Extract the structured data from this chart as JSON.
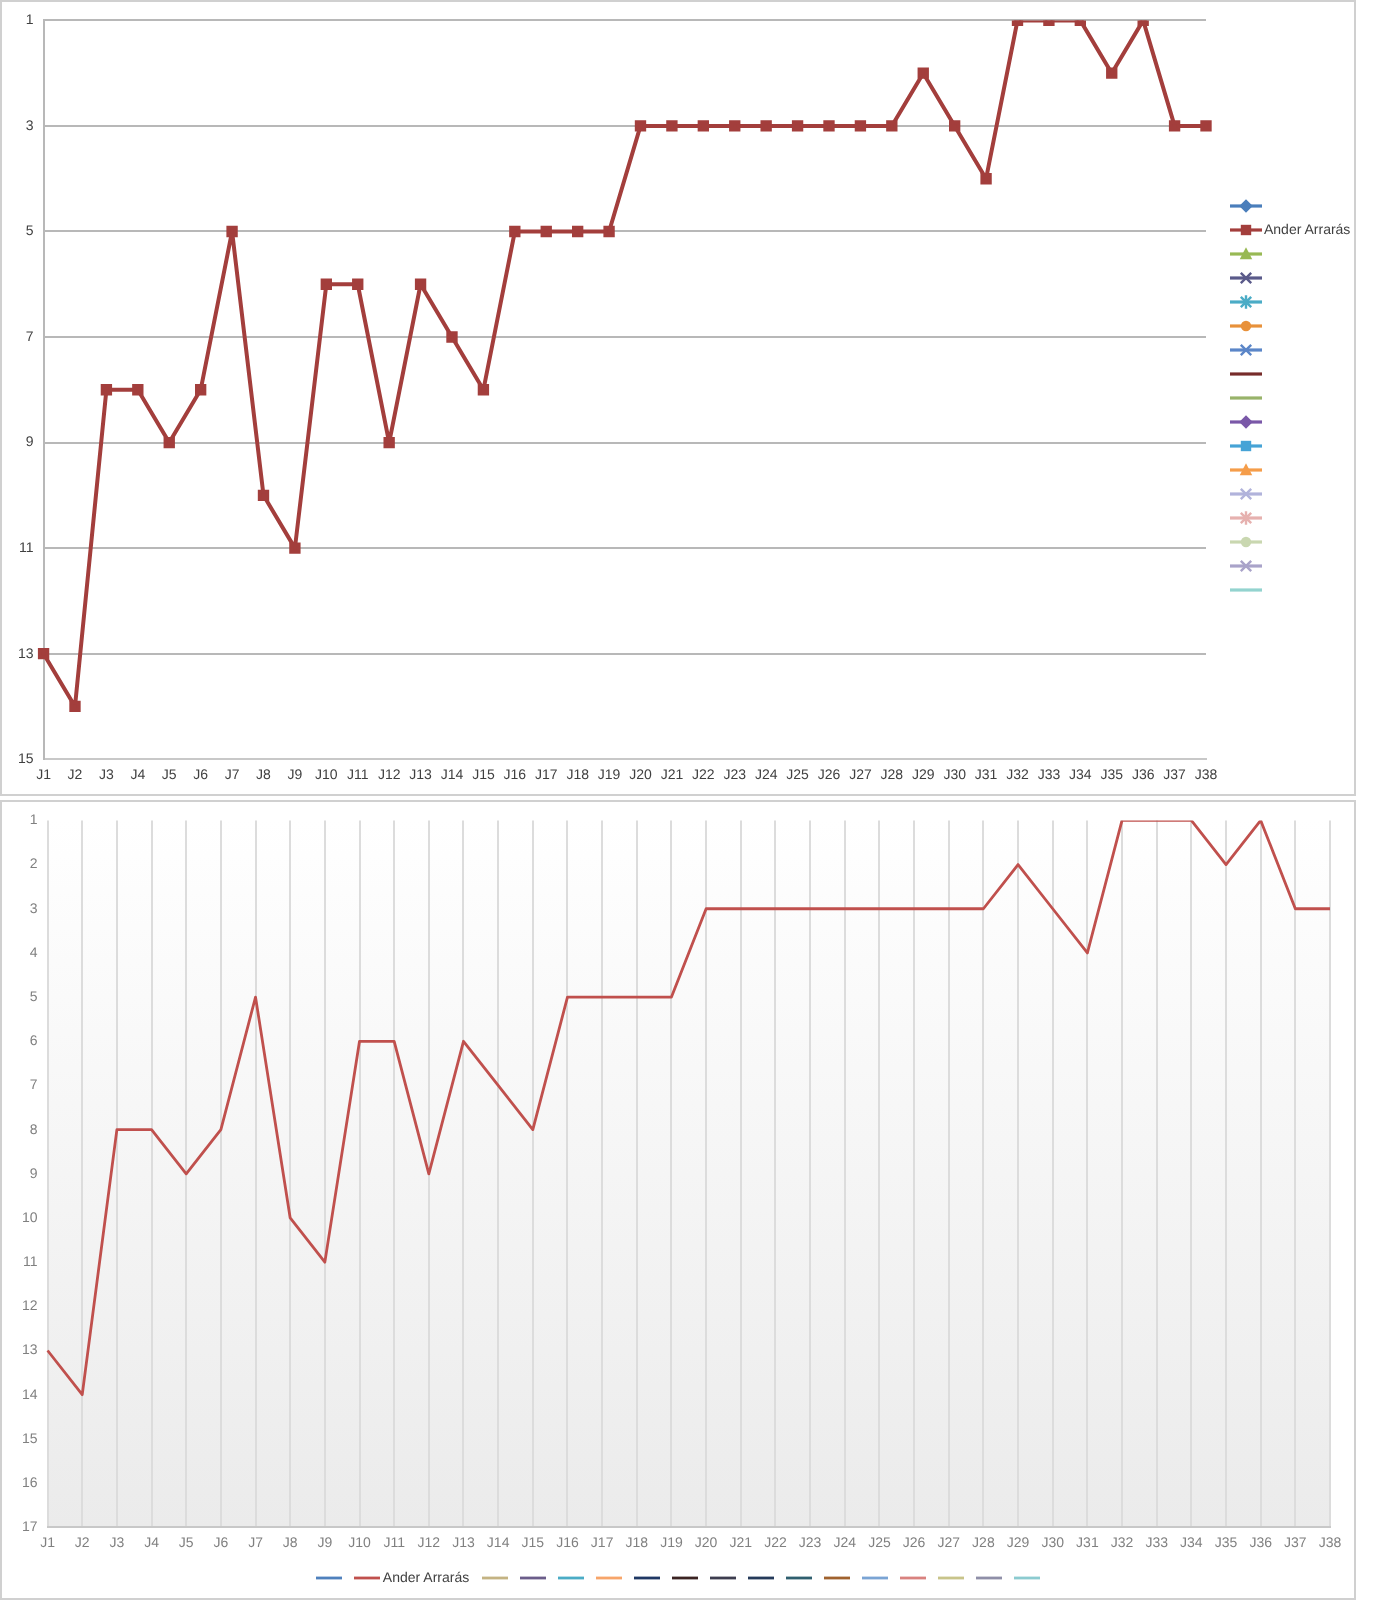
{
  "chart_data": [
    {
      "type": "line",
      "categories": [
        "J1",
        "J2",
        "J3",
        "J4",
        "J5",
        "J6",
        "J7",
        "J8",
        "J9",
        "J10",
        "J11",
        "J12",
        "J13",
        "J14",
        "J15",
        "J16",
        "J17",
        "J18",
        "J19",
        "J20",
        "J21",
        "J22",
        "J23",
        "J24",
        "J25",
        "J26",
        "J27",
        "J28",
        "J29",
        "J30",
        "J31",
        "J32",
        "J33",
        "J34",
        "J35",
        "J36",
        "J37",
        "J38"
      ],
      "series": [
        {
          "color": "#4a7ebb",
          "marker": "diamond",
          "values": [
            null,
            null,
            null,
            null,
            null,
            null,
            null,
            null,
            null,
            null,
            null,
            null,
            null,
            null,
            null,
            null,
            null,
            null,
            null,
            null,
            null,
            null,
            null,
            null,
            null,
            null,
            null,
            null,
            null,
            null,
            null,
            null,
            null,
            null,
            null,
            null,
            null,
            null
          ]
        },
        {
          "name": "Ander Arrarás",
          "color": "#a33e3c",
          "marker": "square",
          "values": [
            13,
            14,
            8,
            8,
            9,
            8,
            5,
            10,
            11,
            6,
            6,
            9,
            6,
            7,
            8,
            5,
            5,
            5,
            5,
            3,
            3,
            3,
            3,
            3,
            3,
            3,
            3,
            3,
            2,
            3,
            4,
            1,
            1,
            1,
            2,
            1,
            3,
            3
          ]
        },
        {
          "color": "#98b954",
          "marker": "triangle",
          "values": [
            null,
            null,
            null,
            null,
            null,
            null,
            null,
            null,
            null,
            null,
            null,
            null,
            null,
            null,
            null,
            null,
            null,
            null,
            null,
            null,
            null,
            null,
            null,
            null,
            null,
            null,
            null,
            null,
            null,
            null,
            null,
            null,
            null,
            null,
            null,
            null,
            null,
            null
          ]
        },
        {
          "color": "#5a5a8a",
          "marker": "cross",
          "values": [
            null,
            null,
            null,
            null,
            null,
            null,
            null,
            null,
            null,
            null,
            null,
            null,
            null,
            null,
            null,
            null,
            null,
            null,
            null,
            null,
            null,
            null,
            null,
            null,
            null,
            null,
            null,
            null,
            null,
            null,
            null,
            null,
            null,
            null,
            null,
            null,
            null,
            null
          ]
        },
        {
          "color": "#4bacc6",
          "marker": "star",
          "values": [
            null,
            null,
            null,
            null,
            null,
            null,
            null,
            null,
            null,
            null,
            null,
            null,
            null,
            null,
            null,
            null,
            null,
            null,
            null,
            null,
            null,
            null,
            null,
            null,
            null,
            null,
            null,
            null,
            null,
            null,
            null,
            null,
            null,
            null,
            null,
            null,
            null,
            null
          ]
        },
        {
          "color": "#e8913a",
          "marker": "circle",
          "values": [
            null,
            null,
            null,
            null,
            null,
            null,
            null,
            null,
            null,
            null,
            null,
            null,
            null,
            null,
            null,
            null,
            null,
            null,
            null,
            null,
            null,
            null,
            null,
            null,
            null,
            null,
            null,
            null,
            null,
            null,
            null,
            null,
            null,
            null,
            null,
            null,
            null,
            null
          ]
        },
        {
          "color": "#5b86c8",
          "marker": "cross",
          "values": [
            null,
            null,
            null,
            null,
            null,
            null,
            null,
            null,
            null,
            null,
            null,
            null,
            null,
            null,
            null,
            null,
            null,
            null,
            null,
            null,
            null,
            null,
            null,
            null,
            null,
            null,
            null,
            null,
            null,
            null,
            null,
            null,
            null,
            null,
            null,
            null,
            null,
            null
          ]
        },
        {
          "color": "#772c2a",
          "marker": "none",
          "values": [
            null,
            null,
            null,
            null,
            null,
            null,
            null,
            null,
            null,
            null,
            null,
            null,
            null,
            null,
            null,
            null,
            null,
            null,
            null,
            null,
            null,
            null,
            null,
            null,
            null,
            null,
            null,
            null,
            null,
            null,
            null,
            null,
            null,
            null,
            null,
            null,
            null,
            null
          ]
        },
        {
          "color": "#98b36a",
          "marker": "none",
          "values": [
            null,
            null,
            null,
            null,
            null,
            null,
            null,
            null,
            null,
            null,
            null,
            null,
            null,
            null,
            null,
            null,
            null,
            null,
            null,
            null,
            null,
            null,
            null,
            null,
            null,
            null,
            null,
            null,
            null,
            null,
            null,
            null,
            null,
            null,
            null,
            null,
            null,
            null
          ]
        },
        {
          "color": "#7a58a8",
          "marker": "diamond",
          "values": [
            null,
            null,
            null,
            null,
            null,
            null,
            null,
            null,
            null,
            null,
            null,
            null,
            null,
            null,
            null,
            null,
            null,
            null,
            null,
            null,
            null,
            null,
            null,
            null,
            null,
            null,
            null,
            null,
            null,
            null,
            null,
            null,
            null,
            null,
            null,
            null,
            null,
            null
          ]
        },
        {
          "color": "#46a3d6",
          "marker": "square",
          "values": [
            null,
            null,
            null,
            null,
            null,
            null,
            null,
            null,
            null,
            null,
            null,
            null,
            null,
            null,
            null,
            null,
            null,
            null,
            null,
            null,
            null,
            null,
            null,
            null,
            null,
            null,
            null,
            null,
            null,
            null,
            null,
            null,
            null,
            null,
            null,
            null,
            null,
            null
          ]
        },
        {
          "color": "#f59d4a",
          "marker": "triangle",
          "values": [
            null,
            null,
            null,
            null,
            null,
            null,
            null,
            null,
            null,
            null,
            null,
            null,
            null,
            null,
            null,
            null,
            null,
            null,
            null,
            null,
            null,
            null,
            null,
            null,
            null,
            null,
            null,
            null,
            null,
            null,
            null,
            null,
            null,
            null,
            null,
            null,
            null,
            null
          ]
        },
        {
          "color": "#b1b3db",
          "marker": "cross",
          "values": [
            null,
            null,
            null,
            null,
            null,
            null,
            null,
            null,
            null,
            null,
            null,
            null,
            null,
            null,
            null,
            null,
            null,
            null,
            null,
            null,
            null,
            null,
            null,
            null,
            null,
            null,
            null,
            null,
            null,
            null,
            null,
            null,
            null,
            null,
            null,
            null,
            null,
            null
          ]
        },
        {
          "color": "#e6b1af",
          "marker": "star",
          "values": [
            null,
            null,
            null,
            null,
            null,
            null,
            null,
            null,
            null,
            null,
            null,
            null,
            null,
            null,
            null,
            null,
            null,
            null,
            null,
            null,
            null,
            null,
            null,
            null,
            null,
            null,
            null,
            null,
            null,
            null,
            null,
            null,
            null,
            null,
            null,
            null,
            null,
            null
          ]
        },
        {
          "color": "#c9d7b0",
          "marker": "circle",
          "values": [
            null,
            null,
            null,
            null,
            null,
            null,
            null,
            null,
            null,
            null,
            null,
            null,
            null,
            null,
            null,
            null,
            null,
            null,
            null,
            null,
            null,
            null,
            null,
            null,
            null,
            null,
            null,
            null,
            null,
            null,
            null,
            null,
            null,
            null,
            null,
            null,
            null,
            null
          ]
        },
        {
          "color": "#a9a3c9",
          "marker": "cross",
          "values": [
            null,
            null,
            null,
            null,
            null,
            null,
            null,
            null,
            null,
            null,
            null,
            null,
            null,
            null,
            null,
            null,
            null,
            null,
            null,
            null,
            null,
            null,
            null,
            null,
            null,
            null,
            null,
            null,
            null,
            null,
            null,
            null,
            null,
            null,
            null,
            null,
            null,
            null
          ]
        },
        {
          "color": "#93d3cf",
          "marker": "none",
          "values": [
            null,
            null,
            null,
            null,
            null,
            null,
            null,
            null,
            null,
            null,
            null,
            null,
            null,
            null,
            null,
            null,
            null,
            null,
            null,
            null,
            null,
            null,
            null,
            null,
            null,
            null,
            null,
            null,
            null,
            null,
            null,
            null,
            null,
            null,
            null,
            null,
            null,
            null
          ]
        }
      ],
      "ylim": [
        15,
        1
      ],
      "yticks": [
        1,
        3,
        5,
        7,
        9,
        11,
        13,
        15
      ],
      "grid": "y",
      "legend": "right"
    },
    {
      "type": "line",
      "categories": [
        "J1",
        "J2",
        "J3",
        "J4",
        "J5",
        "J6",
        "J7",
        "J8",
        "J9",
        "J10",
        "J11",
        "J12",
        "J13",
        "J14",
        "J15",
        "J16",
        "J17",
        "J18",
        "J19",
        "J20",
        "J21",
        "J22",
        "J23",
        "J24",
        "J25",
        "J26",
        "J27",
        "J28",
        "J29",
        "J30",
        "J31",
        "J32",
        "J33",
        "J34",
        "J35",
        "J36",
        "J37",
        "J38"
      ],
      "series": [
        {
          "color": "#4f81bd",
          "values": [
            null,
            null,
            null,
            null,
            null,
            null,
            null,
            null,
            null,
            null,
            null,
            null,
            null,
            null,
            null,
            null,
            null,
            null,
            null,
            null,
            null,
            null,
            null,
            null,
            null,
            null,
            null,
            null,
            null,
            null,
            null,
            null,
            null,
            null,
            null,
            null,
            null,
            null
          ]
        },
        {
          "name": "Ander Arrarás",
          "color": "#c0504d",
          "values": [
            13,
            14,
            8,
            8,
            9,
            8,
            5,
            10,
            11,
            6,
            6,
            9,
            6,
            7,
            8,
            5,
            5,
            5,
            5,
            3,
            3,
            3,
            3,
            3,
            3,
            3,
            3,
            3,
            2,
            3,
            4,
            1,
            1,
            1,
            2,
            1,
            3,
            3
          ]
        },
        {
          "color": "#c4b383",
          "values": [
            null,
            null,
            null,
            null,
            null,
            null,
            null,
            null,
            null,
            null,
            null,
            null,
            null,
            null,
            null,
            null,
            null,
            null,
            null,
            null,
            null,
            null,
            null,
            null,
            null,
            null,
            null,
            null,
            null,
            null,
            null,
            null,
            null,
            null,
            null,
            null,
            null,
            null
          ]
        },
        {
          "color": "#6b5d8a",
          "values": [
            null,
            null,
            null,
            null,
            null,
            null,
            null,
            null,
            null,
            null,
            null,
            null,
            null,
            null,
            null,
            null,
            null,
            null,
            null,
            null,
            null,
            null,
            null,
            null,
            null,
            null,
            null,
            null,
            null,
            null,
            null,
            null,
            null,
            null,
            null,
            null,
            null,
            null
          ]
        },
        {
          "color": "#4bacc6",
          "values": [
            null,
            null,
            null,
            null,
            null,
            null,
            null,
            null,
            null,
            null,
            null,
            null,
            null,
            null,
            null,
            null,
            null,
            null,
            null,
            null,
            null,
            null,
            null,
            null,
            null,
            null,
            null,
            null,
            null,
            null,
            null,
            null,
            null,
            null,
            null,
            null,
            null,
            null
          ]
        },
        {
          "color": "#f7a56a",
          "values": [
            null,
            null,
            null,
            null,
            null,
            null,
            null,
            null,
            null,
            null,
            null,
            null,
            null,
            null,
            null,
            null,
            null,
            null,
            null,
            null,
            null,
            null,
            null,
            null,
            null,
            null,
            null,
            null,
            null,
            null,
            null,
            null,
            null,
            null,
            null,
            null,
            null,
            null
          ]
        },
        {
          "color": "#1f3864",
          "values": [
            null,
            null,
            null,
            null,
            null,
            null,
            null,
            null,
            null,
            null,
            null,
            null,
            null,
            null,
            null,
            null,
            null,
            null,
            null,
            null,
            null,
            null,
            null,
            null,
            null,
            null,
            null,
            null,
            null,
            null,
            null,
            null,
            null,
            null,
            null,
            null,
            null,
            null
          ]
        },
        {
          "color": "#3b2322",
          "values": [
            null,
            null,
            null,
            null,
            null,
            null,
            null,
            null,
            null,
            null,
            null,
            null,
            null,
            null,
            null,
            null,
            null,
            null,
            null,
            null,
            null,
            null,
            null,
            null,
            null,
            null,
            null,
            null,
            null,
            null,
            null,
            null,
            null,
            null,
            null,
            null,
            null,
            null
          ]
        },
        {
          "color": "#3d3d4f",
          "values": [
            null,
            null,
            null,
            null,
            null,
            null,
            null,
            null,
            null,
            null,
            null,
            null,
            null,
            null,
            null,
            null,
            null,
            null,
            null,
            null,
            null,
            null,
            null,
            null,
            null,
            null,
            null,
            null,
            null,
            null,
            null,
            null,
            null,
            null,
            null,
            null,
            null,
            null
          ]
        },
        {
          "color": "#253a5a",
          "values": [
            null,
            null,
            null,
            null,
            null,
            null,
            null,
            null,
            null,
            null,
            null,
            null,
            null,
            null,
            null,
            null,
            null,
            null,
            null,
            null,
            null,
            null,
            null,
            null,
            null,
            null,
            null,
            null,
            null,
            null,
            null,
            null,
            null,
            null,
            null,
            null,
            null,
            null
          ]
        },
        {
          "color": "#2f5f6f",
          "values": [
            null,
            null,
            null,
            null,
            null,
            null,
            null,
            null,
            null,
            null,
            null,
            null,
            null,
            null,
            null,
            null,
            null,
            null,
            null,
            null,
            null,
            null,
            null,
            null,
            null,
            null,
            null,
            null,
            null,
            null,
            null,
            null,
            null,
            null,
            null,
            null,
            null,
            null
          ]
        },
        {
          "color": "#a0622e",
          "values": [
            null,
            null,
            null,
            null,
            null,
            null,
            null,
            null,
            null,
            null,
            null,
            null,
            null,
            null,
            null,
            null,
            null,
            null,
            null,
            null,
            null,
            null,
            null,
            null,
            null,
            null,
            null,
            null,
            null,
            null,
            null,
            null,
            null,
            null,
            null,
            null,
            null,
            null
          ]
        },
        {
          "color": "#7aa4d4",
          "values": [
            null,
            null,
            null,
            null,
            null,
            null,
            null,
            null,
            null,
            null,
            null,
            null,
            null,
            null,
            null,
            null,
            null,
            null,
            null,
            null,
            null,
            null,
            null,
            null,
            null,
            null,
            null,
            null,
            null,
            null,
            null,
            null,
            null,
            null,
            null,
            null,
            null,
            null
          ]
        },
        {
          "color": "#d9827f",
          "values": [
            null,
            null,
            null,
            null,
            null,
            null,
            null,
            null,
            null,
            null,
            null,
            null,
            null,
            null,
            null,
            null,
            null,
            null,
            null,
            null,
            null,
            null,
            null,
            null,
            null,
            null,
            null,
            null,
            null,
            null,
            null,
            null,
            null,
            null,
            null,
            null,
            null,
            null
          ]
        },
        {
          "color": "#c8c48a",
          "values": [
            null,
            null,
            null,
            null,
            null,
            null,
            null,
            null,
            null,
            null,
            null,
            null,
            null,
            null,
            null,
            null,
            null,
            null,
            null,
            null,
            null,
            null,
            null,
            null,
            null,
            null,
            null,
            null,
            null,
            null,
            null,
            null,
            null,
            null,
            null,
            null,
            null,
            null
          ]
        },
        {
          "color": "#8f8fa8",
          "values": [
            null,
            null,
            null,
            null,
            null,
            null,
            null,
            null,
            null,
            null,
            null,
            null,
            null,
            null,
            null,
            null,
            null,
            null,
            null,
            null,
            null,
            null,
            null,
            null,
            null,
            null,
            null,
            null,
            null,
            null,
            null,
            null,
            null,
            null,
            null,
            null,
            null,
            null
          ]
        },
        {
          "color": "#8ccbd0",
          "values": [
            null,
            null,
            null,
            null,
            null,
            null,
            null,
            null,
            null,
            null,
            null,
            null,
            null,
            null,
            null,
            null,
            null,
            null,
            null,
            null,
            null,
            null,
            null,
            null,
            null,
            null,
            null,
            null,
            null,
            null,
            null,
            null,
            null,
            null,
            null,
            null,
            null,
            null
          ]
        }
      ],
      "ylim": [
        17,
        1
      ],
      "yticks": [
        1,
        2,
        3,
        4,
        5,
        6,
        7,
        8,
        9,
        10,
        11,
        12,
        13,
        14,
        15,
        16,
        17
      ],
      "grid": "x",
      "marker": "none",
      "legend": "bottom"
    }
  ]
}
